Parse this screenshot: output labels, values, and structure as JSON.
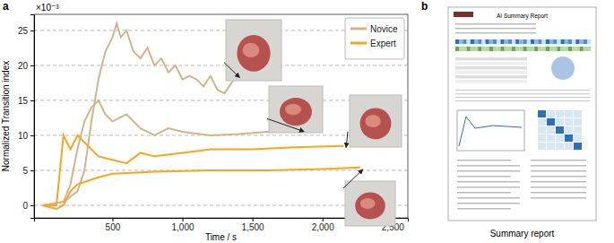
{
  "chart_data": {
    "type": "line",
    "panel_label": "a",
    "y_label": "Normalized Transition index",
    "x_label": "Time / s",
    "annotations": [
      "×10⁻³"
    ],
    "xlim": [
      -60,
      2610
    ],
    "ylim": [
      -1.8,
      27.3
    ],
    "xticks": [
      500,
      {
        "value": 1000,
        "label": "1,000"
      },
      {
        "value": 1500,
        "label": "1,500"
      },
      {
        "value": 2000,
        "label": "2,000"
      },
      {
        "value": 2500,
        "label": "2,500"
      }
    ],
    "yticks": [
      0,
      5,
      10,
      15,
      20,
      25
    ],
    "grid": true,
    "legend": "upper right",
    "series": [
      {
        "name": "Novice",
        "color": "#d2b48c",
        "x": [
          0,
          150,
          250,
          300,
          350,
          400,
          450,
          500,
          530,
          560,
          600,
          650,
          700,
          750,
          800,
          850,
          900,
          950,
          1000,
          1050,
          1100,
          1150,
          1200,
          1250,
          1300,
          1350,
          1390
        ],
        "values": [
          0,
          0.5,
          2,
          5,
          12,
          18,
          22,
          24,
          26,
          24,
          25,
          22,
          21,
          22.5,
          20,
          21,
          19,
          20,
          18,
          18.5,
          18,
          17,
          18.5,
          16.5,
          16,
          17.5,
          18.5
        ]
      },
      {
        "color": "#d2b48c",
        "x": [
          0,
          150,
          200,
          250,
          300,
          350,
          400,
          450,
          500,
          600,
          700,
          800,
          900,
          1000,
          1200,
          1400,
          1600,
          1850
        ],
        "values": [
          0,
          0.5,
          3,
          8,
          12,
          14,
          15,
          13,
          12,
          13,
          11,
          10,
          11,
          10.5,
          10,
          10.2,
          10.5,
          10.8
        ]
      },
      {
        "name": "Expert",
        "color": "#f5a623",
        "x": [
          0,
          100,
          130,
          150,
          200,
          250,
          300,
          400,
          500,
          600,
          700,
          800,
          1000,
          1200,
          1500,
          1800,
          2150
        ],
        "values": [
          0,
          0,
          6,
          10,
          8,
          10,
          9,
          7,
          6.5,
          6,
          7.5,
          7,
          7.5,
          8,
          8,
          8.3,
          8.5
        ]
      },
      {
        "color": "#f5a623",
        "x": [
          0,
          100,
          150,
          200,
          250,
          400,
          500,
          800,
          1200,
          1600,
          2000,
          2270
        ],
        "values": [
          0,
          -0.5,
          0,
          2,
          3,
          4,
          4.5,
          4.8,
          5,
          5,
          5.2,
          5.4
        ]
      }
    ],
    "report": {
      "panel_label": "b",
      "title": "AI Summary Report",
      "caption": "Summary report"
    }
  }
}
